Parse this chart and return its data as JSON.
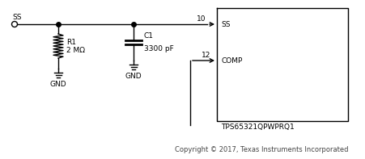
{
  "bg_color": "#ffffff",
  "fig_width": 4.51,
  "fig_height": 1.97,
  "dpi": 100,
  "copyright_text": "Copyright © 2017, Texas Instruments Incorporated",
  "ic_label": "TPS65321QPWPRQ1",
  "pin10_label": "10",
  "pin12_label": "12",
  "ss_pin_label": "SS",
  "comp_pin_label": "COMP",
  "ss_net_label": "SS",
  "r1_label": "R1",
  "r1_value": "2 MΩ",
  "c1_label": "C1",
  "c1_value": "3300 pF",
  "gnd_label1": "GND",
  "gnd_label2": "GND",
  "line_color": "#000000",
  "dot_color": "#000000",
  "font_size_labels": 6.5,
  "font_size_copyright": 6.0,
  "font_size_ic": 6.5
}
